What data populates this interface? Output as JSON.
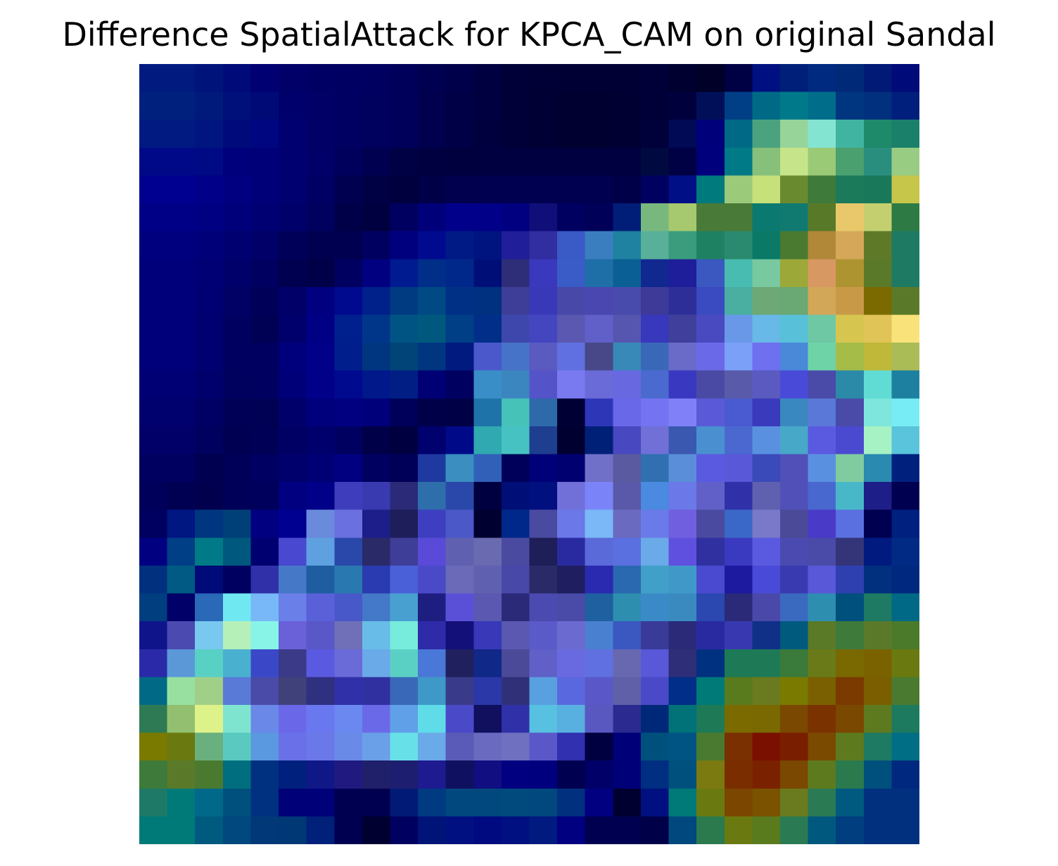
{
  "figure": {
    "title": "Difference SpatialAttack for KPCA_CAM on original Sandal"
  },
  "overlay": {
    "grid": [
      28,
      28
    ],
    "colors": [
      [
        "#001a80",
        "#001a80",
        "#00137a",
        "#000a78",
        "#000073",
        "#000068",
        "#000064",
        "#000062",
        "#000060",
        "#00005a",
        "#000050",
        "#00004a",
        "#000040",
        "#000038",
        "#000036",
        "#000035",
        "#000035",
        "#000035",
        "#000038",
        "#000030",
        "#000028",
        "#000045",
        "#001080",
        "#001f78",
        "#002a80",
        "#002a78",
        "#001a75",
        "#000a78"
      ],
      [
        "#00207e",
        "#00207e",
        "#001a7c",
        "#00107a",
        "#000a77",
        "#00006c",
        "#000066",
        "#000062",
        "#00005f",
        "#00005a",
        "#00004f",
        "#000046",
        "#000040",
        "#000038",
        "#000034",
        "#000030",
        "#000030",
        "#000032",
        "#000038",
        "#00003d",
        "#000f58",
        "#003e86",
        "#006a86",
        "#007a8a",
        "#006e8a",
        "#00357f",
        "#00307e",
        "#001e7c"
      ],
      [
        "#001a82",
        "#001a82",
        "#00157f",
        "#000a7a",
        "#000580",
        "#000070",
        "#000066",
        "#000062",
        "#00005f",
        "#00005a",
        "#00004f",
        "#000046",
        "#00003e",
        "#000038",
        "#000034",
        "#000030",
        "#000030",
        "#000032",
        "#00003a",
        "#000a55",
        "#00007a",
        "#006a86",
        "#4ba27e",
        "#96d49a",
        "#84e4d2",
        "#40b4a0",
        "#1e8a6a",
        "#1a806a"
      ],
      [
        "#000a88",
        "#000a88",
        "#000a85",
        "#00007d",
        "#000078",
        "#000070",
        "#000068",
        "#00005c",
        "#000050",
        "#000045",
        "#000040",
        "#00003e",
        "#000040",
        "#000040",
        "#000040",
        "#000040",
        "#000040",
        "#000040",
        "#000a40",
        "#000045",
        "#00007c",
        "#007a86",
        "#86c07a",
        "#c6e48a",
        "#9aca76",
        "#4ba070",
        "#2a8e7e",
        "#98cc82"
      ],
      [
        "#000090",
        "#000090",
        "#000088",
        "#000080",
        "#000078",
        "#000070",
        "#000064",
        "#000050",
        "#000044",
        "#00003e",
        "#000048",
        "#00004e",
        "#000050",
        "#000050",
        "#000050",
        "#000050",
        "#000050",
        "#000048",
        "#000060",
        "#000f85",
        "#007a7c",
        "#9aca7a",
        "#c6e07a",
        "#6a8a30",
        "#3e7a3a",
        "#1a7a5a",
        "#1a785a",
        "#c6c64a"
      ],
      [
        "#000086",
        "#000086",
        "#000082",
        "#00007a",
        "#000072",
        "#00006a",
        "#00005e",
        "#000048",
        "#000040",
        "#000060",
        "#00007a",
        "#00008a",
        "#000088",
        "#000080",
        "#100f7a",
        "#000060",
        "#000058",
        "#001e78",
        "#78b87e",
        "#a6c86e",
        "#4a7a38",
        "#4a7a38",
        "#0a7a70",
        "#107a70",
        "#587a28",
        "#e8c86a",
        "#c4d070",
        "#2e7a44"
      ],
      [
        "#00007e",
        "#00007e",
        "#000078",
        "#000070",
        "#000068",
        "#000058",
        "#000050",
        "#000050",
        "#000060",
        "#00007e",
        "#000a8e",
        "#001a85",
        "#001480",
        "#201e98",
        "#302ea0",
        "#3a5ac6",
        "#3a7ec0",
        "#1e82a0",
        "#58b098",
        "#3a9c7c",
        "#1e8262",
        "#2a8a70",
        "#0a7a66",
        "#4a7a30",
        "#b08838",
        "#d4a858",
        "#5e7a28",
        "#1e7a62"
      ],
      [
        "#00007a",
        "#00007a",
        "#000074",
        "#00006a",
        "#000060",
        "#000050",
        "#000048",
        "#000060",
        "#000080",
        "#001a90",
        "#002e88",
        "#00288a",
        "#000f78",
        "#2e2e78",
        "#3a38bc",
        "#3a5cc6",
        "#1e6ea8",
        "#0a6094",
        "#102890",
        "#1e1e9a",
        "#3a58c0",
        "#48bcb0",
        "#78c8a0",
        "#9ca838",
        "#d89862",
        "#ae9430",
        "#5a7a2a",
        "#1e7a62"
      ],
      [
        "#00007a",
        "#00007a",
        "#000072",
        "#000065",
        "#000058",
        "#000068",
        "#000080",
        "#000a8e",
        "#00208a",
        "#003a80",
        "#004a84",
        "#003086",
        "#003080",
        "#3e3e98",
        "#3838b8",
        "#4848a8",
        "#4a48b0",
        "#484aac",
        "#3e3a98",
        "#2e2e98",
        "#3a4ac0",
        "#4aaea0",
        "#6ea876",
        "#6aa874",
        "#d2a858",
        "#c89a48",
        "#7a6a00",
        "#5a7a2a"
      ],
      [
        "#00007a",
        "#00007a",
        "#000070",
        "#000060",
        "#000054",
        "#00006c",
        "#000084",
        "#00208e",
        "#00368a",
        "#005484",
        "#00587e",
        "#003e86",
        "#002e88",
        "#3e48ac",
        "#4446c0",
        "#5a58b0",
        "#6060c8",
        "#5656b0",
        "#3838bc",
        "#40409c",
        "#4a4ac0",
        "#6a98e8",
        "#68b8e8",
        "#58c0d8",
        "#6ec8a4",
        "#d6c650",
        "#e0c458",
        "#fae27a"
      ],
      [
        "#00007a",
        "#00007a",
        "#000070",
        "#000060",
        "#000060",
        "#00007c",
        "#000088",
        "#001e8c",
        "#003680",
        "#004478",
        "#003680",
        "#001a80",
        "#4a58cc",
        "#4672c8",
        "#5a5ac0",
        "#6070e0",
        "#484888",
        "#3888b8",
        "#3a68b8",
        "#6a6ac8",
        "#6a6ae8",
        "#7aa0f8",
        "#6e70f0",
        "#4a88d8",
        "#6ed4a8",
        "#a6bc48",
        "#c0b838",
        "#aabc56"
      ],
      [
        "#000074",
        "#000074",
        "#00006c",
        "#00005e",
        "#000060",
        "#000078",
        "#000088",
        "#000a8e",
        "#00188a",
        "#001e84",
        "#000074",
        "#000060",
        "#3a8ec8",
        "#3c86c0",
        "#5454c8",
        "#7a7af0",
        "#6a6ad8",
        "#6868e0",
        "#4a6ad0",
        "#3838c0",
        "#4a4aa4",
        "#5a5aaa",
        "#5a5ac0",
        "#4a4ad8",
        "#4a4aa8",
        "#2a8aa8",
        "#60dcd4",
        "#1e80a0"
      ],
      [
        "#00006e",
        "#00006e",
        "#000064",
        "#000056",
        "#000054",
        "#00006a",
        "#00007c",
        "#000080",
        "#00007a",
        "#00005a",
        "#000048",
        "#000046",
        "#1e74a8",
        "#46c2b8",
        "#2e6aaa",
        "#000035",
        "#2e36b8",
        "#6868e8",
        "#7474f2",
        "#8080f8",
        "#5a5ad8",
        "#4a5ad0",
        "#3a3abc",
        "#3a88c0",
        "#5a78d8",
        "#4a4aa8",
        "#7ee6dc",
        "#78ecf4"
      ],
      [
        "#000068",
        "#000068",
        "#00005e",
        "#000052",
        "#000056",
        "#000064",
        "#00006c",
        "#000060",
        "#000048",
        "#000040",
        "#00006e",
        "#000a88",
        "#30aab0",
        "#46c2c2",
        "#1e3e90",
        "#000030",
        "#002078",
        "#4848c0",
        "#7070d8",
        "#3a58b0",
        "#4a90d0",
        "#4a68d0",
        "#5a90e0",
        "#48a8c8",
        "#5a5ae0",
        "#4a4ad0",
        "#a6f2c4",
        "#5ac4dc"
      ],
      [
        "#000060",
        "#000060",
        "#000050",
        "#000058",
        "#000062",
        "#00006c",
        "#000074",
        "#000080",
        "#000060",
        "#000058",
        "#1e3aa0",
        "#3a8ec0",
        "#3060b8",
        "#00005a",
        "#000078",
        "#000070",
        "#7070c8",
        "#5a5aa0",
        "#3070b0",
        "#5a8ed8",
        "#5a5ae0",
        "#5858d8",
        "#3a4ab8",
        "#5050b8",
        "#5a90e0",
        "#80cca0",
        "#2a8ab0",
        "#00207e"
      ],
      [
        "#00005a",
        "#000052",
        "#00004e",
        "#000058",
        "#00005c",
        "#000080",
        "#000088",
        "#3e3ebc",
        "#3a3ab0",
        "#2a2a78",
        "#2e6eaa",
        "#2a48aa",
        "#000040",
        "#000f78",
        "#00107e",
        "#7070d8",
        "#7a84f8",
        "#5a58a8",
        "#4a8ae0",
        "#6a78e8",
        "#6060c8",
        "#3030a8",
        "#6060b0",
        "#5050b8",
        "#4868d0",
        "#48b8c8",
        "#1e1e88",
        "#000050"
      ],
      [
        "#000060",
        "#001680",
        "#003680",
        "#004078",
        "#000080",
        "#000090",
        "#6a8adc",
        "#6a70e0",
        "#1e1e8a",
        "#1e1e5a",
        "#3e3ec0",
        "#4a58c8",
        "#000030",
        "#00288a",
        "#4a4aa0",
        "#6a78e8",
        "#7ab8f8",
        "#6a6ac0",
        "#6a7ae8",
        "#7060e0",
        "#4a4aa0",
        "#3a68c8",
        "#7a78c8",
        "#4a4a98",
        "#4a3ac8",
        "#5a70e0",
        "#000050",
        "#002080"
      ],
      [
        "#000080",
        "#003e86",
        "#007a86",
        "#00587e",
        "#000070",
        "#4848d0",
        "#5ea0e0",
        "#2a48aa",
        "#2a2a68",
        "#3e3e98",
        "#5a4ad8",
        "#6060b0",
        "#6a6ab0",
        "#4a4aa0",
        "#1e1e58",
        "#2a2aa0",
        "#5a6ad8",
        "#5a70e0",
        "#6aaae8",
        "#6050e0",
        "#3030a0",
        "#3a3ac0",
        "#5a5ae0",
        "#4a4ab0",
        "#4a4aa8",
        "#343478",
        "#001a80",
        "#002a84"
      ],
      [
        "#00307e",
        "#005a84",
        "#000a78",
        "#000060",
        "#3030a8",
        "#4678c8",
        "#1e5ea0",
        "#2a78b0",
        "#2a3ab0",
        "#4a60d8",
        "#4a4ac8",
        "#6a6ab8",
        "#6060b0",
        "#4848a8",
        "#2a2a68",
        "#1e1e60",
        "#2a2ab0",
        "#2a68b0",
        "#40a0c8",
        "#4098c8",
        "#4a4ad0",
        "#1e1aa0",
        "#4a4ad8",
        "#3a3ab0",
        "#5858d8",
        "#2e40b0",
        "#00307e",
        "#00287e"
      ],
      [
        "#003e80",
        "#000068",
        "#2a68b8",
        "#70e8f2",
        "#78b8f8",
        "#6a80e8",
        "#5a60d8",
        "#4858c8",
        "#4478c8",
        "#48a0d0",
        "#1e1e80",
        "#5a50d8",
        "#5a58b0",
        "#2a2a78",
        "#4a4ab0",
        "#4a4aa8",
        "#1e60a0",
        "#2e8eb0",
        "#3a8ac8",
        "#3a8ac0",
        "#2a48b0",
        "#2a2a78",
        "#4a48a8",
        "#3a6ac0",
        "#2e8eb0",
        "#00507e",
        "#1e7a62",
        "#006a86"
      ],
      [
        "#10148a",
        "#4a4ab0",
        "#78c8f0",
        "#b4f0b8",
        "#88f4e8",
        "#6a60d8",
        "#5a58c8",
        "#7070b8",
        "#68bce8",
        "#78ecdc",
        "#2e2aa8",
        "#14107a",
        "#3838b8",
        "#5a58b0",
        "#5a5ac8",
        "#6a6ad0",
        "#4a80d0",
        "#3a58c0",
        "#3a3a98",
        "#2a2a78",
        "#2a2aa0",
        "#3838b0",
        "#103088",
        "#005a7e",
        "#5a7a28",
        "#3e7a3a",
        "#5a7a2a",
        "#4a7a2a"
      ],
      [
        "#2a2aa8",
        "#5a98d8",
        "#58d0c4",
        "#4ab0d0",
        "#3a48c8",
        "#3a3a88",
        "#5a5ae0",
        "#6a6ad8",
        "#6aaae8",
        "#5ad0c4",
        "#4a78d8",
        "#20205e",
        "#102888",
        "#4a4a98",
        "#6060c8",
        "#6a6ae0",
        "#6070e0",
        "#6868b0",
        "#5858d8",
        "#2e2e78",
        "#003080",
        "#1e7a56",
        "#1e7a56",
        "#3a7a3a",
        "#6a7a18",
        "#7a6800",
        "#7a6200",
        "#6a7a10"
      ],
      [
        "#006a86",
        "#98e0a0",
        "#a0d088",
        "#5a7ad8",
        "#4a4aa8",
        "#40407a",
        "#303080",
        "#3030a8",
        "#3030a0",
        "#3a68b8",
        "#3e98c8",
        "#3a3a8a",
        "#2a38a8",
        "#303078",
        "#58a0e0",
        "#5a68e0",
        "#5a58c8",
        "#6060a8",
        "#4a4ac8",
        "#002e88",
        "#007a78",
        "#5a7a1e",
        "#6a7a1e",
        "#7a7a00",
        "#7a6000",
        "#7a3a00",
        "#7a5e00",
        "#4a7a30"
      ],
      [
        "#2e7a54",
        "#92c070",
        "#def28a",
        "#7ee4d0",
        "#6a88e8",
        "#6a68e8",
        "#6a78f0",
        "#6a88f0",
        "#6a6ae8",
        "#60a0e8",
        "#60dce8",
        "#4a4ac8",
        "#10105e",
        "#3030a8",
        "#58c0e0",
        "#58b0e0",
        "#5858c0",
        "#2a2a90",
        "#002878",
        "#007278",
        "#1e7a56",
        "#7a6a00",
        "#7a6800",
        "#7a4800",
        "#7a3200",
        "#7a4800",
        "#5e7a1e",
        "#1e7a5e"
      ],
      [
        "#7a7a00",
        "#6a7a10",
        "#6ab07e",
        "#5acac0",
        "#5a98e0",
        "#6a70e8",
        "#6a78e8",
        "#6a8ae8",
        "#6aa0e8",
        "#68e0e8",
        "#6aaae8",
        "#5a5ab8",
        "#6a6ac0",
        "#7070c0",
        "#5a58c8",
        "#3030b0",
        "#000040",
        "#000078",
        "#00507e",
        "#005484",
        "#4a7a30",
        "#7a3000",
        "#7a1000",
        "#7a1e00",
        "#7a4a00",
        "#5e7a1e",
        "#1e7a62",
        "#006e84"
      ],
      [
        "#3e7a3a",
        "#5a7a2a",
        "#4a7a30",
        "#006e7e",
        "#003080",
        "#00207e",
        "#101888",
        "#201a80",
        "#20206a",
        "#1e1e70",
        "#1e1a90",
        "#101060",
        "#100e80",
        "#000080",
        "#00007e",
        "#000050",
        "#000068",
        "#000078",
        "#002e80",
        "#00507e",
        "#7a7a10",
        "#7a2e00",
        "#7a2200",
        "#7a4800",
        "#5e7a1e",
        "#2a7a4e",
        "#00507e",
        "#00287e"
      ],
      [
        "#1e7a66",
        "#007a78",
        "#006888",
        "#00507e",
        "#003080",
        "#000078",
        "#000078",
        "#000050",
        "#000050",
        "#001a76",
        "#003a80",
        "#00487e",
        "#00487e",
        "#004a7e",
        "#00487e",
        "#00307e",
        "#000080",
        "#000030",
        "#001080",
        "#007a78",
        "#6a7a10",
        "#7a4600",
        "#7a5200",
        "#6a7a1e",
        "#2a7a54",
        "#005a80",
        "#00307e",
        "#00307e"
      ],
      [
        "#007a78",
        "#007a78",
        "#005a80",
        "#00487e",
        "#003878",
        "#003876",
        "#00207a",
        "#000050",
        "#000030",
        "#000060",
        "#001478",
        "#001080",
        "#000a80",
        "#001080",
        "#001a80",
        "#000080",
        "#000050",
        "#000050",
        "#000048",
        "#00487e",
        "#2a7a4e",
        "#6a7a10",
        "#5a7a1e",
        "#2a7a54",
        "#00587e",
        "#003e80",
        "#00307e",
        "#00307e"
      ]
    ]
  }
}
